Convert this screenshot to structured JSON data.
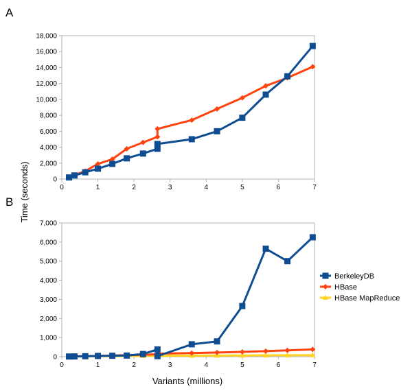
{
  "panel_labels": [
    "A",
    "B"
  ],
  "ylabel": "Time (seconds)",
  "xlabel": "Variants (millions)",
  "legend": [
    {
      "name": "BerkeleyDB",
      "color": "#0f4d92",
      "marker": "square"
    },
    {
      "name": "HBase",
      "color": "#ff420e",
      "marker": "diamond"
    },
    {
      "name": "HBase MapReduce",
      "color": "#ffd320",
      "marker": "triangle"
    }
  ],
  "chart_data": [
    {
      "panel": "A",
      "type": "line",
      "xlim": [
        0,
        7
      ],
      "ylim": [
        0,
        18000
      ],
      "xticks": [
        0,
        1,
        2,
        3,
        4,
        5,
        6,
        7
      ],
      "yticks": [
        0,
        2000,
        4000,
        6000,
        8000,
        10000,
        12000,
        14000,
        16000,
        18000
      ],
      "ytick_labels": [
        "0",
        "2,000",
        "4,000",
        "6,000",
        "8,000",
        "10,000",
        "12,000",
        "14,000",
        "16,000",
        "18,000"
      ],
      "grid": false,
      "series": [
        {
          "name": "BerkeleyDB",
          "color": "#0f4d92",
          "marker": "square",
          "x": [
            0.2,
            0.35,
            0.65,
            1.0,
            1.4,
            1.8,
            2.25,
            2.65,
            2.65,
            3.6,
            4.3,
            5.0,
            5.65,
            6.25,
            6.95
          ],
          "y": [
            200,
            450,
            850,
            1300,
            1900,
            2600,
            3200,
            3800,
            4400,
            5000,
            6000,
            7700,
            10600,
            12900,
            16700
          ]
        },
        {
          "name": "HBase",
          "color": "#ff420e",
          "marker": "diamond",
          "x": [
            0.2,
            0.35,
            0.65,
            1.0,
            1.4,
            1.8,
            2.25,
            2.65,
            2.65,
            3.6,
            4.3,
            5.0,
            5.65,
            6.25,
            6.95
          ],
          "y": [
            200,
            500,
            1000,
            1900,
            2500,
            3800,
            4600,
            5300,
            6300,
            7400,
            8800,
            10200,
            11700,
            12700,
            14100
          ]
        }
      ]
    },
    {
      "panel": "B",
      "type": "line",
      "xlim": [
        0,
        7
      ],
      "ylim": [
        0,
        7000
      ],
      "xticks": [
        0,
        1,
        2,
        3,
        4,
        5,
        6,
        7
      ],
      "yticks": [
        0,
        1000,
        2000,
        3000,
        4000,
        5000,
        6000,
        7000
      ],
      "ytick_labels": [
        "0",
        "1,000",
        "2,000",
        "3,000",
        "4,000",
        "5,000",
        "6,000",
        "7,000"
      ],
      "grid": false,
      "legend_position": "right",
      "series": [
        {
          "name": "BerkeleyDB",
          "color": "#0f4d92",
          "marker": "square",
          "x": [
            0.2,
            0.35,
            0.65,
            1.0,
            1.4,
            1.8,
            2.25,
            2.65,
            2.65,
            3.6,
            4.3,
            5.0,
            5.65,
            6.25,
            6.95
          ],
          "y": [
            10,
            15,
            25,
            40,
            50,
            60,
            140,
            380,
            30,
            650,
            800,
            2650,
            5650,
            5000,
            6250
          ]
        },
        {
          "name": "HBase",
          "color": "#ff420e",
          "marker": "diamond",
          "x": [
            0.2,
            0.35,
            0.65,
            1.0,
            1.4,
            1.8,
            2.25,
            2.65,
            2.65,
            3.6,
            4.3,
            5.0,
            5.65,
            6.25,
            6.95
          ],
          "y": [
            10,
            20,
            30,
            40,
            60,
            80,
            100,
            130,
            160,
            190,
            220,
            250,
            290,
            330,
            380
          ]
        },
        {
          "name": "HBase MapReduce",
          "color": "#ffd320",
          "marker": "triangle",
          "x": [
            0.2,
            0.35,
            0.65,
            1.0,
            1.4,
            1.8,
            2.25,
            2.65,
            2.65,
            3.6,
            4.3,
            5.0,
            5.65,
            6.25,
            6.95
          ],
          "y": [
            10,
            15,
            20,
            25,
            30,
            35,
            40,
            45,
            50,
            55,
            60,
            65,
            70,
            75,
            80
          ]
        }
      ]
    }
  ]
}
